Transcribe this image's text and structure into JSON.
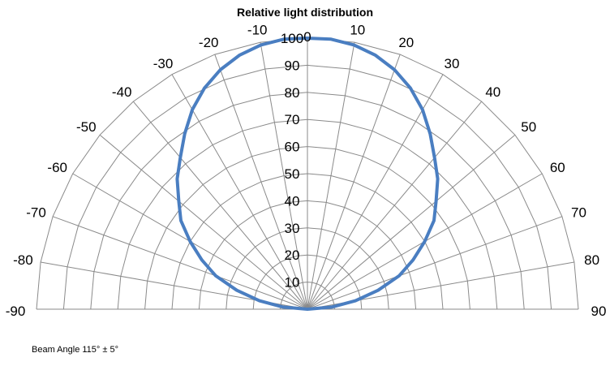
{
  "chart_data": {
    "type": "line",
    "subtype": "polar-half",
    "title": "Relative light distribution",
    "angle_unit": "degrees",
    "angle_ticks": [
      -90,
      -80,
      -70,
      -60,
      -50,
      -40,
      -30,
      -20,
      -10,
      0,
      10,
      20,
      30,
      40,
      50,
      60,
      70,
      80,
      90
    ],
    "radial_ticks": [
      10,
      20,
      30,
      40,
      50,
      60,
      70,
      80,
      90,
      100
    ],
    "rlim": [
      0,
      100
    ],
    "grid": true,
    "legend": "none",
    "series": [
      {
        "color": "#4A7EC1",
        "angles": [
          -90,
          -85,
          -80,
          -75,
          -70,
          -65,
          -60,
          -55,
          -50,
          -45,
          -40,
          -35,
          -30,
          -25,
          -20,
          -15,
          -10,
          -5,
          0,
          5,
          10,
          15,
          20,
          25,
          30,
          35,
          40,
          45,
          50,
          55,
          60,
          65,
          70,
          75,
          80,
          85,
          90
        ],
        "values": [
          0,
          9,
          18,
          27,
          36,
          43,
          50,
          57,
          62,
          68,
          73,
          79,
          85,
          90,
          94,
          97,
          99,
          100,
          100,
          100,
          99,
          97,
          94,
          90,
          85,
          79,
          73,
          68,
          62,
          57,
          50,
          43,
          36,
          27,
          18,
          9,
          0
        ]
      }
    ]
  },
  "footnote": "Beam Angle 115° ± 5°"
}
